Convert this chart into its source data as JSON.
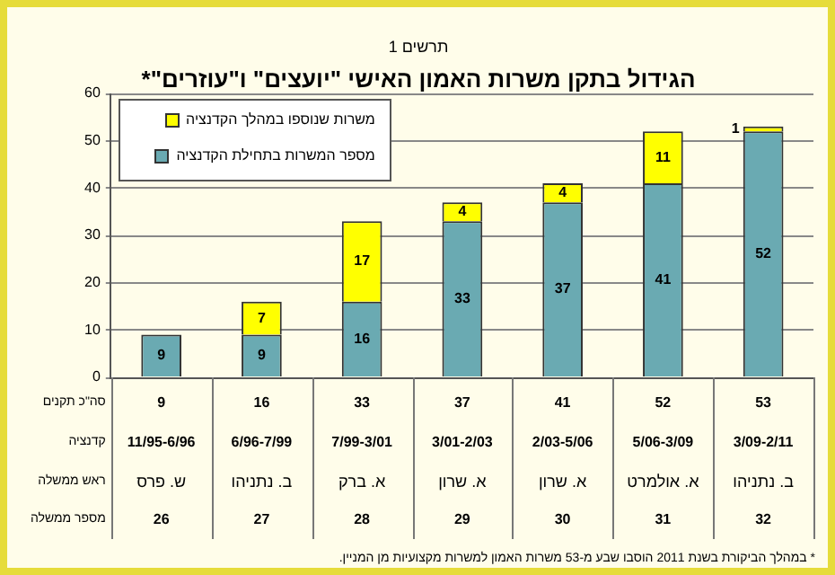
{
  "chart_data": {
    "type": "bar",
    "stacked": true,
    "subtitle": "תרשים 1",
    "title": "הגידול בתקן משרות האמון האישי \"יועצים\" ו\"עוזרים\"*",
    "categories": [
      "11/95-6/96",
      "6/96-7/99",
      "7/99-3/01",
      "3/01-2/03",
      "2/03-5/06",
      "5/06-3/09",
      "3/09-2/11"
    ],
    "series": [
      {
        "name": "מספר המשרות בתחילת הקדנציה",
        "color": "#6aaab2",
        "values": [
          9,
          9,
          16,
          33,
          37,
          41,
          52
        ]
      },
      {
        "name": "משרות שנוספו במהלך הקדנציה",
        "color": "#ffff00",
        "values": [
          null,
          7,
          17,
          4,
          4,
          11,
          1
        ]
      }
    ],
    "ylim": [
      0,
      60
    ],
    "yticks": [
      0,
      10,
      20,
      30,
      40,
      50,
      60
    ],
    "grid": "y",
    "legend": "top left",
    "data_labels": true,
    "totals": [
      "9",
      "16",
      "33",
      "37",
      "41",
      "52",
      "53"
    ],
    "annotations": [
      "סה\"כ תקנים",
      "קדנציה",
      "ראש ממשלה",
      "מספר ממשלה",
      "ש. פרס",
      "ב. נתניהו",
      "א. ברק",
      "א. שרון",
      "א. שרון",
      "א. אולמרט",
      "ב. נתניהו",
      "26",
      "27",
      "28",
      "29",
      "30",
      "31",
      "32",
      "* במהלך הביקורת בשנת 2011 הוסבו שבע מ-53 משרות האמון למשרות מקצועיות מן המניין."
    ]
  }
}
